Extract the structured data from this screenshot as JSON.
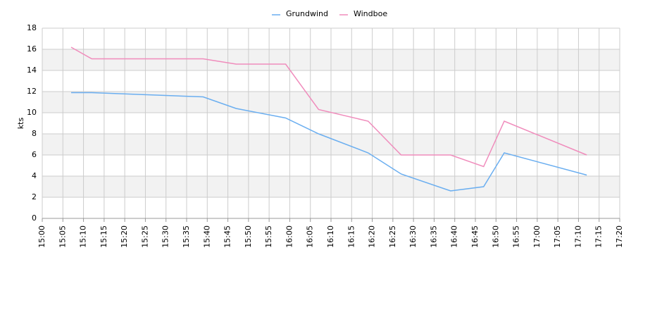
{
  "chart_data": {
    "type": "line",
    "y_label": "kts",
    "x": [
      "15:07",
      "15:12",
      "15:39",
      "15:47",
      "15:59",
      "16:07",
      "16:19",
      "16:27",
      "16:39",
      "16:47",
      "16:52",
      "17:12"
    ],
    "series": [
      {
        "name": "Grundwind",
        "color": "#6aaef0",
        "values": [
          11.9,
          11.9,
          11.5,
          10.4,
          9.5,
          8.0,
          6.2,
          4.2,
          2.6,
          3.0,
          6.2,
          4.1
        ]
      },
      {
        "name": "Windboe",
        "color": "#f08cbc",
        "values": [
          16.2,
          15.1,
          15.1,
          14.6,
          14.6,
          10.3,
          9.2,
          6.0,
          6.0,
          4.9,
          9.2,
          6.0
        ]
      }
    ],
    "xlim": [
      "15:00",
      "17:20"
    ],
    "xticks": [
      "15:00",
      "15:05",
      "15:10",
      "15:15",
      "15:20",
      "15:25",
      "15:30",
      "15:35",
      "15:40",
      "15:45",
      "15:50",
      "15:55",
      "16:00",
      "16:05",
      "16:10",
      "16:15",
      "16:20",
      "16:25",
      "16:30",
      "16:35",
      "16:40",
      "16:45",
      "16:50",
      "16:55",
      "17:00",
      "17:05",
      "17:10",
      "17:15",
      "17:20"
    ],
    "ylim": [
      0,
      18
    ],
    "yticks": [
      0,
      2,
      4,
      6,
      8,
      10,
      12,
      14,
      16,
      18
    ],
    "grid": true,
    "alternating_bands": true,
    "legend": "top"
  }
}
